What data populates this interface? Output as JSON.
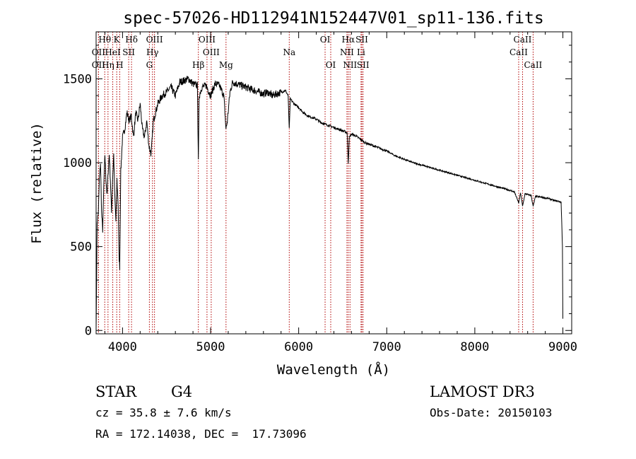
{
  "chart_data": {
    "type": "line",
    "title": "spec-57026-HD112941N152447V01_sp11-136.fits",
    "xlabel": "Wavelength (Å)",
    "ylabel": "Flux (relative)",
    "xlim": [
      3700,
      9100
    ],
    "ylim": [
      -20,
      1780
    ],
    "xticks": [
      4000,
      5000,
      6000,
      7000,
      8000,
      9000
    ],
    "xtick_labels": [
      "4000",
      "5000",
      "6000",
      "7000",
      "8000",
      "9000"
    ],
    "yticks": [
      0,
      500,
      1000,
      1500
    ],
    "ytick_labels": [
      "0",
      "500",
      "1000",
      "1500"
    ],
    "grid": false,
    "series": [
      {
        "name": "spectrum",
        "x": [
          3700,
          3712,
          3725,
          3737,
          3750,
          3762,
          3775,
          3787,
          3800,
          3812,
          3825,
          3837,
          3850,
          3862,
          3875,
          3887,
          3900,
          3912,
          3925,
          3937,
          3950,
          3960,
          3968,
          3980,
          4000,
          4025,
          4050,
          4075,
          4100,
          4125,
          4150,
          4175,
          4200,
          4225,
          4250,
          4275,
          4300,
          4325,
          4350,
          4375,
          4400,
          4450,
          4500,
          4550,
          4600,
          4650,
          4700,
          4750,
          4800,
          4850,
          4861,
          4870,
          4900,
          4950,
          5000,
          5050,
          5100,
          5150,
          5175,
          5190,
          5220,
          5250,
          5300,
          5350,
          5400,
          5450,
          5500,
          5550,
          5600,
          5650,
          5700,
          5750,
          5800,
          5850,
          5880,
          5893,
          5905,
          5950,
          6000,
          6050,
          6100,
          6150,
          6200,
          6250,
          6300,
          6350,
          6400,
          6450,
          6500,
          6550,
          6563,
          6575,
          6600,
          6650,
          6700,
          6750,
          6800,
          6900,
          7000,
          7100,
          7200,
          7300,
          7400,
          7500,
          7600,
          7700,
          7800,
          7900,
          8000,
          8100,
          8200,
          8300,
          8400,
          8450,
          8498,
          8520,
          8542,
          8570,
          8600,
          8640,
          8662,
          8690,
          8750,
          8800,
          8850,
          8900,
          8950,
          8980,
          8995,
          9000
        ],
        "y": [
          0,
          650,
          700,
          900,
          1000,
          700,
          600,
          850,
          1050,
          900,
          800,
          950,
          1050,
          900,
          700,
          900,
          1050,
          800,
          650,
          900,
          750,
          450,
          380,
          950,
          1150,
          1200,
          1300,
          1250,
          1280,
          1150,
          1300,
          1250,
          1350,
          1200,
          1150,
          1250,
          1100,
          1050,
          1250,
          1300,
          1350,
          1400,
          1420,
          1450,
          1400,
          1480,
          1490,
          1500,
          1470,
          1460,
          1000,
          1400,
          1450,
          1460,
          1400,
          1470,
          1460,
          1400,
          1200,
          1250,
          1420,
          1480,
          1470,
          1460,
          1450,
          1440,
          1430,
          1420,
          1410,
          1420,
          1400,
          1410,
          1420,
          1430,
          1400,
          1200,
          1380,
          1350,
          1330,
          1300,
          1280,
          1270,
          1260,
          1240,
          1230,
          1220,
          1210,
          1200,
          1190,
          1180,
          1000,
          1150,
          1170,
          1160,
          1140,
          1120,
          1110,
          1090,
          1070,
          1040,
          1020,
          1000,
          985,
          970,
          955,
          940,
          925,
          910,
          895,
          880,
          865,
          850,
          835,
          825,
          760,
          820,
          740,
          815,
          810,
          805,
          740,
          800,
          795,
          790,
          785,
          775,
          770,
          765,
          500,
          70
        ]
      }
    ],
    "line_ids": {
      "label_positions": [
        "top",
        "middle",
        "bottom"
      ],
      "lines": [
        {
          "label": "Hθ",
          "wavelength": 3798,
          "row": 0
        },
        {
          "label": "OII",
          "wavelength": 3727,
          "row": 1
        },
        {
          "label": "OII",
          "wavelength": 3727,
          "row": 2
        },
        {
          "label": "K",
          "wavelength": 3934,
          "row": 0
        },
        {
          "label": "HeI",
          "wavelength": 3889,
          "row": 1
        },
        {
          "label": "Hη",
          "wavelength": 3835,
          "row": 2
        },
        {
          "label": "SII",
          "wavelength": 4070,
          "row": 1
        },
        {
          "label": "H",
          "wavelength": 3968,
          "row": 2
        },
        {
          "label": "Hδ",
          "wavelength": 4102,
          "row": 0
        },
        {
          "label": "OIII",
          "wavelength": 4363,
          "row": 0
        },
        {
          "label": "Hγ",
          "wavelength": 4340,
          "row": 1
        },
        {
          "label": "G",
          "wavelength": 4305,
          "row": 2
        },
        {
          "label": "Hβ",
          "wavelength": 4861,
          "row": 2
        },
        {
          "label": "OIII",
          "wavelength": 4959,
          "row": 0
        },
        {
          "label": "OIII",
          "wavelength": 5007,
          "row": 1
        },
        {
          "label": "Mg",
          "wavelength": 5175,
          "row": 2
        },
        {
          "label": "Na",
          "wavelength": 5893,
          "row": 1
        },
        {
          "label": "OI",
          "wavelength": 6300,
          "row": 0
        },
        {
          "label": "OI",
          "wavelength": 6364,
          "row": 2
        },
        {
          "label": "Hα",
          "wavelength": 6563,
          "row": 0
        },
        {
          "label": "NII",
          "wavelength": 6548,
          "row": 1
        },
        {
          "label": "NII",
          "wavelength": 6583,
          "row": 2
        },
        {
          "label": "SII",
          "wavelength": 6717,
          "row": 0
        },
        {
          "label": "Li",
          "wavelength": 6708,
          "row": 1
        },
        {
          "label": "SII",
          "wavelength": 6731,
          "row": 2
        },
        {
          "label": "CaII",
          "wavelength": 8542,
          "row": 0
        },
        {
          "label": "CaII",
          "wavelength": 8498,
          "row": 1
        },
        {
          "label": "CaII",
          "wavelength": 8662,
          "row": 2
        }
      ]
    }
  },
  "info": {
    "object_type": "STAR",
    "subclass": "G4",
    "survey": "LAMOST DR3",
    "cz": "cz = 35.8 ± 7.6 km/s",
    "obs_date": "Obs-Date: 20150103",
    "coords": "RA = 172.14038, DEC =  17.73096"
  }
}
